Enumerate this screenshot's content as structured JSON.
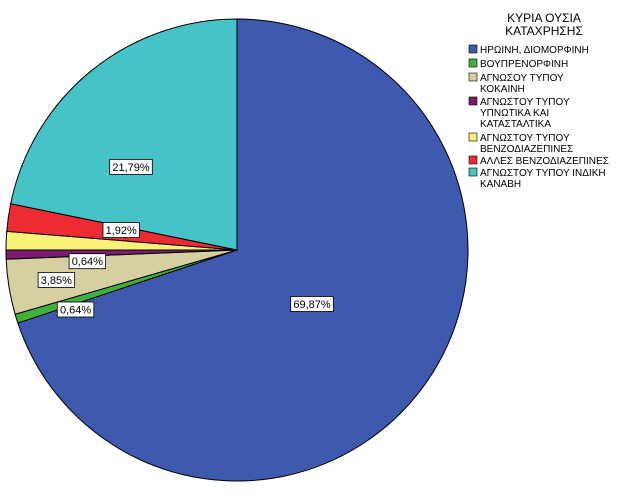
{
  "chart_data": {
    "type": "pie",
    "legend_title": [
      "ΚΥΡΙΑ ΟΥΣΙΑ",
      "ΚΑΤΑΧΡΗΣΗΣ"
    ],
    "legend_position": "top-right",
    "slices": [
      {
        "name": [
          "ΗΡΩΙΝΗ, ΔΙΟΜΟΡΦΙΝΗ"
        ],
        "value": 69.87,
        "label": "69,87%",
        "color": "#3d5aae"
      },
      {
        "name": [
          "ΒΟΥΠΡΕΝΟΡΦΙΝΗ"
        ],
        "value": 0.64,
        "label": "0,64%",
        "color": "#3eb13c"
      },
      {
        "name": [
          "ΑΓΝΩΣΟΥ ΤΥΠΟΥ",
          "ΚΟΚΑΙΝΗ"
        ],
        "value": 3.85,
        "label": "3,85%",
        "color": "#d6cf9f"
      },
      {
        "name": [
          "ΑΓΝΩΣΤΟΥ ΤΥΠΟΥ",
          "ΥΠΝΩΤΙΚΑ ΚΑΙ",
          "ΚΑΤΑΣΤΑΛΤΙΚΑ"
        ],
        "value": 0.64,
        "label": "0,64%",
        "color": "#7a1c6f"
      },
      {
        "name": [
          "ΑΓΝΩΣΤΟΥ ΤΥΠΟΥ",
          "ΒΕΝΖΟΔΙΑΖΕΠΙΝΕΣ"
        ],
        "value": 1.28,
        "label": "",
        "color": "#f8f377"
      },
      {
        "name": [
          "ΑΛΛΕΣ ΒΕΝΖΟΔΙΑΖΕΠΙΝΕΣ"
        ],
        "value": 1.92,
        "label": "1,92%",
        "color": "#ec2b32"
      },
      {
        "name": [
          "ΑΓΝΩΣΤΟΥ ΤΥΠΟΥ ΙΝΔΙΚΗ",
          "ΚΑΝΑΒΗ"
        ],
        "value": 21.79,
        "label": "21,79%",
        "color": "#46c3c6"
      }
    ]
  }
}
